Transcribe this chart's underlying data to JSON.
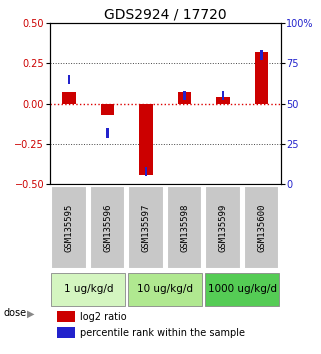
{
  "title": "GDS2924 / 17720",
  "samples": [
    "GSM135595",
    "GSM135596",
    "GSM135597",
    "GSM135598",
    "GSM135599",
    "GSM135600"
  ],
  "log2_ratio": [
    0.07,
    -0.07,
    -0.44,
    0.07,
    0.04,
    0.32
  ],
  "percentile_rank": [
    65,
    32,
    8,
    55,
    55,
    80
  ],
  "dose_groups": [
    {
      "label": "1 ug/kg/d",
      "start": 0,
      "end": 2,
      "color": "#d4f5c0"
    },
    {
      "label": "10 ug/kg/d",
      "start": 2,
      "end": 4,
      "color": "#b0e890"
    },
    {
      "label": "1000 ug/kg/d",
      "start": 4,
      "end": 6,
      "color": "#55cc55"
    }
  ],
  "ylim_left": [
    -0.5,
    0.5
  ],
  "ylim_right": [
    0,
    100
  ],
  "yticks_left": [
    -0.5,
    -0.25,
    0,
    0.25,
    0.5
  ],
  "yticks_right": [
    0,
    25,
    50,
    75,
    100
  ],
  "bar_color_red": "#cc0000",
  "bar_color_blue": "#2222cc",
  "sample_box_color": "#c8c8c8",
  "hline_red_color": "#dd0000",
  "dotted_color": "#444444",
  "title_fontsize": 10,
  "tick_fontsize": 7,
  "label_fontsize": 6.5,
  "dose_fontsize": 7.5,
  "legend_fontsize": 7,
  "bar_width": 0.35
}
